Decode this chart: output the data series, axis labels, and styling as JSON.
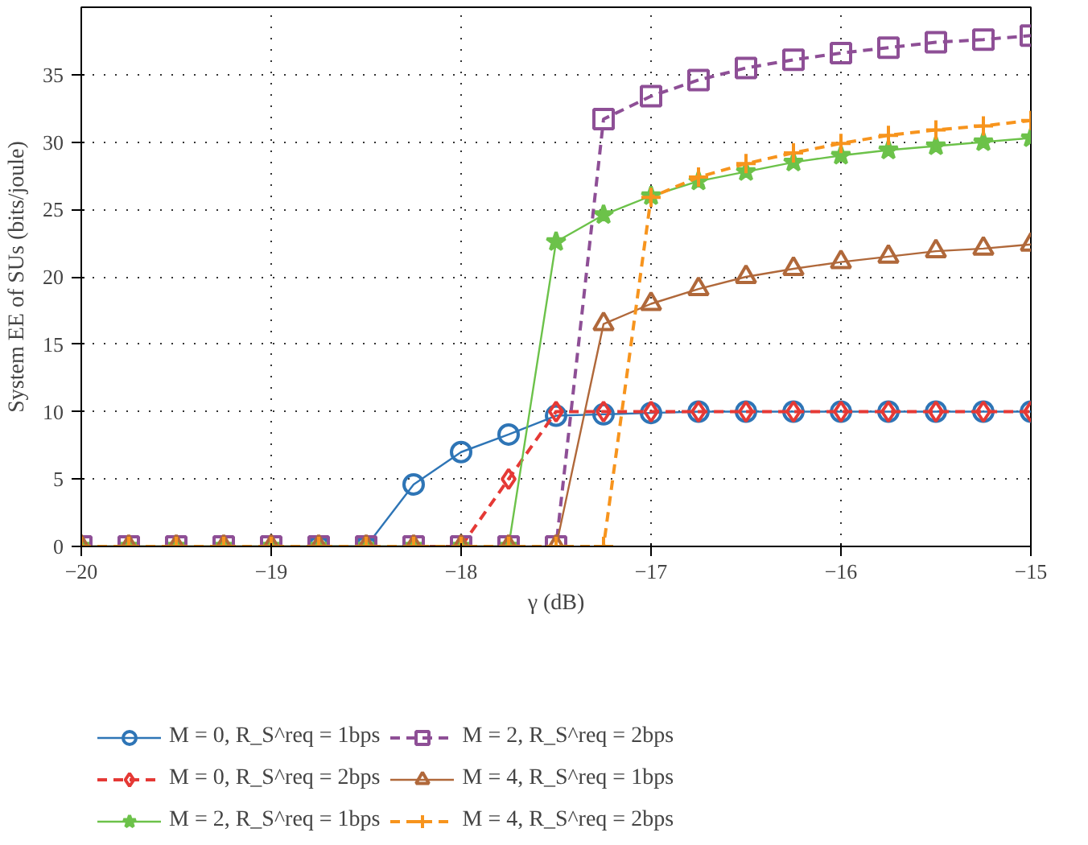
{
  "chart_data": {
    "type": "line",
    "xlabel": "γ (dB)",
    "ylabel": "System EE of SUs (bits/joule)",
    "x": [
      -20,
      -19.75,
      -19.5,
      -19.25,
      -19,
      -18.75,
      -18.5,
      -18.25,
      -18,
      -17.75,
      -17.5,
      -17.25,
      -17,
      -16.75,
      -16.5,
      -16.25,
      -16,
      -15.75,
      -15.5,
      -15.25,
      -15
    ],
    "xlim": [
      -20,
      -15
    ],
    "xticks": [
      -20,
      -19,
      -18,
      -17,
      -16,
      -15
    ],
    "ylim": [
      0,
      40
    ],
    "yticks": [
      0,
      5,
      10,
      15,
      20,
      25,
      30,
      35
    ],
    "grid": true,
    "legend": "bottom",
    "series": [
      {
        "name": "M = 0, R_S^req = 1bps",
        "color": "#2e75b6",
        "marker": "circle",
        "line_style": "solid",
        "values": [
          null,
          null,
          null,
          null,
          null,
          0,
          0,
          4.6,
          7.0,
          8.3,
          9.7,
          9.8,
          9.9,
          10.0,
          10.0,
          10.0,
          10.0,
          10.0,
          10.0,
          10.0,
          10.0
        ]
      },
      {
        "name": "M = 0, R_S^req = 2bps",
        "color": "#e53935",
        "marker": "diamond",
        "line_style": "dashed",
        "values": [
          null,
          null,
          null,
          null,
          null,
          null,
          null,
          0,
          0,
          5.0,
          10.0,
          10.0,
          10.0,
          10.0,
          10.0,
          10.0,
          10.0,
          10.0,
          10.0,
          10.0,
          10.0
        ]
      },
      {
        "name": "M = 2, R_S^req = 1bps",
        "color": "#6cc24a",
        "marker": "star",
        "line_style": "solid",
        "values": [
          0,
          0,
          0,
          0,
          0,
          0,
          0,
          0,
          0,
          0,
          22.6,
          24.6,
          26.0,
          27.1,
          27.8,
          28.5,
          29.0,
          29.4,
          29.7,
          30.0,
          30.3
        ]
      },
      {
        "name": "M = 2, R_S^req = 2bps",
        "color": "#8e4f96",
        "marker": "square",
        "line_style": "dashed",
        "values": [
          0,
          0,
          0,
          0,
          0,
          0,
          0,
          0,
          0,
          0,
          0,
          31.7,
          33.4,
          34.6,
          35.5,
          36.1,
          36.6,
          37.0,
          37.4,
          37.6,
          37.9
        ]
      },
      {
        "name": "M = 4, R_S^req = 1bps",
        "color": "#b0683a",
        "marker": "triangle",
        "line_style": "solid",
        "values": [
          0,
          0,
          0,
          0,
          0,
          0,
          0,
          0,
          0,
          0,
          0,
          16.5,
          18.0,
          19.1,
          20.0,
          20.6,
          21.1,
          21.5,
          21.9,
          22.1,
          22.4
        ]
      },
      {
        "name": "M = 4, R_S^req = 2bps",
        "color": "#f7941d",
        "marker": "cross",
        "line_style": "dashed",
        "values": [
          0,
          0,
          0,
          0,
          0,
          0,
          0,
          0,
          0,
          0,
          0,
          0,
          25.9,
          27.4,
          28.4,
          29.2,
          29.9,
          30.5,
          30.9,
          31.2,
          31.6
        ]
      }
    ]
  }
}
